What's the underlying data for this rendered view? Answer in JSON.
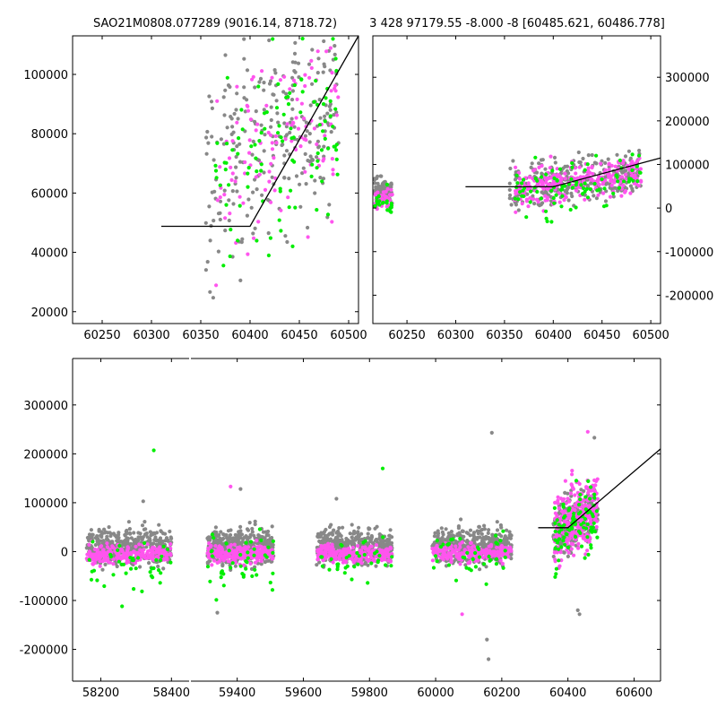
{
  "chart_data": [
    {
      "panel": "top-left",
      "type": "scatter",
      "title": "SAO21M0808.077289 (9016.14, 8718.72)",
      "xlim": [
        60220,
        60510
      ],
      "ylim": [
        16000,
        113000
      ],
      "xticks": [
        60250,
        60300,
        60350,
        60400,
        60450,
        60500
      ],
      "yticks": [
        20000,
        40000,
        60000,
        80000,
        100000
      ],
      "ytick_side": "left",
      "grid": false,
      "series": [
        {
          "color": "#888888",
          "cluster": {
            "x_range": [
              60355,
              60490
            ],
            "y_center": 80000,
            "y_spread": 18000
          }
        },
        {
          "color": "#ff55ee",
          "cluster": {
            "x_range": [
              60365,
              60490
            ],
            "y_center": 78000,
            "y_spread": 16000
          }
        },
        {
          "color": "#00ee00",
          "cluster": {
            "x_range": [
              60365,
              60490
            ],
            "y_center": 75000,
            "y_spread": 17000
          }
        }
      ],
      "model_line": [
        [
          60310,
          48800
        ],
        [
          60400,
          48800
        ],
        [
          60510,
          113000
        ]
      ]
    },
    {
      "panel": "top-right",
      "type": "scatter",
      "title": "3 428 97179.55 -8.000 -8 [60485.621, 60486.778]",
      "xlim": [
        60215,
        60510
      ],
      "ylim": [
        -265000,
        395000
      ],
      "xticks": [
        60250,
        60300,
        60350,
        60400,
        60450,
        60500
      ],
      "yticks": [
        -200000,
        -100000,
        0,
        100000,
        200000,
        300000
      ],
      "ytick_side": "right",
      "grid": false,
      "series": [
        {
          "color": "#888888",
          "clusters": [
            {
              "x_range": [
                60215,
                60235
              ],
              "y_center": 38000,
              "y_spread": 14000
            },
            {
              "x_range": [
                60355,
                60490
              ],
              "y_center": 65000,
              "y_spread": 25000
            }
          ]
        },
        {
          "color": "#ff55ee",
          "clusters": [
            {
              "x_range": [
                60215,
                60235
              ],
              "y_center": 20000,
              "y_spread": 14000
            },
            {
              "x_range": [
                60360,
                60490
              ],
              "y_center": 62000,
              "y_spread": 22000
            }
          ]
        },
        {
          "color": "#00ee00",
          "clusters": [
            {
              "x_range": [
                60215,
                60235
              ],
              "y_center": 15000,
              "y_spread": 14000
            },
            {
              "x_range": [
                60360,
                60490
              ],
              "y_center": 52000,
              "y_spread": 30000
            }
          ]
        }
      ],
      "model_line": [
        [
          60310,
          48800
        ],
        [
          60400,
          48800
        ],
        [
          60510,
          115000
        ]
      ]
    },
    {
      "panel": "bottom",
      "type": "scatter",
      "title": "",
      "segments": [
        {
          "xlim": [
            58120,
            58450
          ],
          "xticks": [
            58200,
            58400
          ]
        },
        {
          "xlim": [
            59260,
            60680
          ],
          "xticks": [
            59400,
            59600,
            59800,
            60000,
            60200,
            60400,
            60600
          ]
        }
      ],
      "ylim": [
        -265000,
        395000
      ],
      "yticks": [
        -200000,
        -100000,
        0,
        100000,
        200000,
        300000
      ],
      "ytick_side": "left",
      "grid": false,
      "series": [
        {
          "color": "#888888",
          "clusters": [
            {
              "x_range": [
                58160,
                58400
              ],
              "y_center": 10000,
              "y_spread": 18000
            },
            {
              "x_range": [
                59310,
                59510
              ],
              "y_center": 10000,
              "y_spread": 18000
            },
            {
              "x_range": [
                59640,
                59870
              ],
              "y_center": 10000,
              "y_spread": 18000
            },
            {
              "x_range": [
                59990,
                60230
              ],
              "y_center": 12000,
              "y_spread": 18000
            },
            {
              "x_range": [
                60355,
                60490
              ],
              "y_center": 62000,
              "y_spread": 28000
            }
          ]
        },
        {
          "color": "#ff55ee",
          "clusters": [
            {
              "x_range": [
                58160,
                58400
              ],
              "y_center": -5000,
              "y_spread": 9000
            },
            {
              "x_range": [
                59310,
                59510
              ],
              "y_center": -5000,
              "y_spread": 9000
            },
            {
              "x_range": [
                59640,
                59870
              ],
              "y_center": -5000,
              "y_spread": 9000
            },
            {
              "x_range": [
                59990,
                60230
              ],
              "y_center": -3000,
              "y_spread": 9000
            },
            {
              "x_range": [
                60360,
                60490
              ],
              "y_center": 70000,
              "y_spread": 35000
            }
          ]
        },
        {
          "color": "#00ee00",
          "clusters": [
            {
              "x_range": [
                58160,
                58400
              ],
              "y_center": -25000,
              "y_spread": 30000
            },
            {
              "x_range": [
                59310,
                59510
              ],
              "y_center": -20000,
              "y_spread": 30000
            },
            {
              "x_range": [
                59640,
                59870
              ],
              "y_center": -15000,
              "y_spread": 25000
            },
            {
              "x_range": [
                59990,
                60230
              ],
              "y_center": -10000,
              "y_spread": 25000
            },
            {
              "x_range": [
                60360,
                60490
              ],
              "y_center": 50000,
              "y_spread": 35000
            }
          ]
        }
      ],
      "outliers": [
        {
          "x": 58350,
          "y": 207000,
          "color": "#00ee00"
        },
        {
          "x": 58320,
          "y": 103000,
          "color": "#888888"
        },
        {
          "x": 58260,
          "y": -112000,
          "color": "#00ee00"
        },
        {
          "x": 59380,
          "y": 133000,
          "color": "#ff55ee"
        },
        {
          "x": 59410,
          "y": 128000,
          "color": "#888888"
        },
        {
          "x": 59340,
          "y": -125000,
          "color": "#888888"
        },
        {
          "x": 59840,
          "y": 170000,
          "color": "#00ee00"
        },
        {
          "x": 59700,
          "y": 108000,
          "color": "#888888"
        },
        {
          "x": 60170,
          "y": 243000,
          "color": "#888888"
        },
        {
          "x": 60160,
          "y": -220000,
          "color": "#888888"
        },
        {
          "x": 60155,
          "y": -180000,
          "color": "#888888"
        },
        {
          "x": 60080,
          "y": -128000,
          "color": "#ff55ee"
        },
        {
          "x": 60460,
          "y": 245000,
          "color": "#ff55ee"
        },
        {
          "x": 60480,
          "y": 233000,
          "color": "#888888"
        },
        {
          "x": 60430,
          "y": -120000,
          "color": "#888888"
        },
        {
          "x": 60435,
          "y": -128000,
          "color": "#888888"
        }
      ],
      "model_line": [
        [
          60310,
          48800
        ],
        [
          60400,
          48800
        ],
        [
          60680,
          210000
        ]
      ]
    }
  ]
}
